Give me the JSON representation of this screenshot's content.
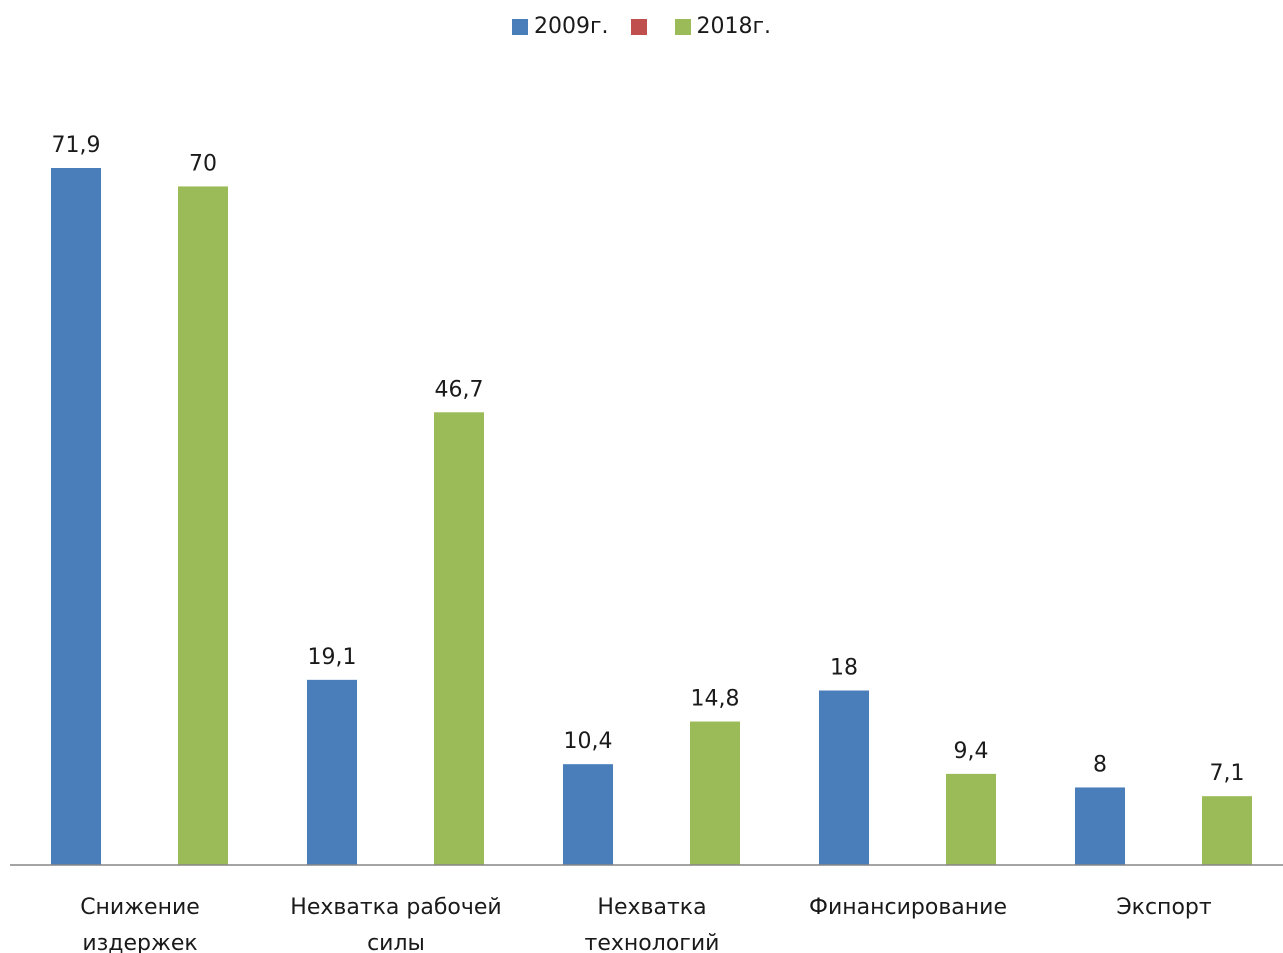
{
  "chart_data": {
    "type": "bar",
    "categories": [
      [
        "Снижение",
        "издержек"
      ],
      [
        "Нехватка рабочей",
        "силы"
      ],
      [
        "Нехватка",
        "технологий"
      ],
      [
        "Финансирование"
      ],
      [
        "Экспорт"
      ]
    ],
    "series": [
      {
        "name": "2009г.",
        "color": "#4a7ebb",
        "values": [
          71.9,
          19.1,
          10.4,
          18,
          8
        ],
        "labels": [
          "71,9",
          "19,1",
          "10,4",
          "18",
          "8"
        ]
      },
      {
        "name": "",
        "color": "#c0504d",
        "values": [
          null,
          null,
          null,
          null,
          null
        ],
        "labels": [
          "",
          "",
          "",
          "",
          ""
        ]
      },
      {
        "name": "2018г.",
        "color": "#9bbb59",
        "values": [
          70,
          46.7,
          14.8,
          9.4,
          7.1
        ],
        "labels": [
          "70",
          "46,7",
          "14,8",
          "9,4",
          "7,1"
        ]
      }
    ],
    "ylim": [
      0,
      80
    ],
    "grid": false,
    "legend_position": "top"
  }
}
